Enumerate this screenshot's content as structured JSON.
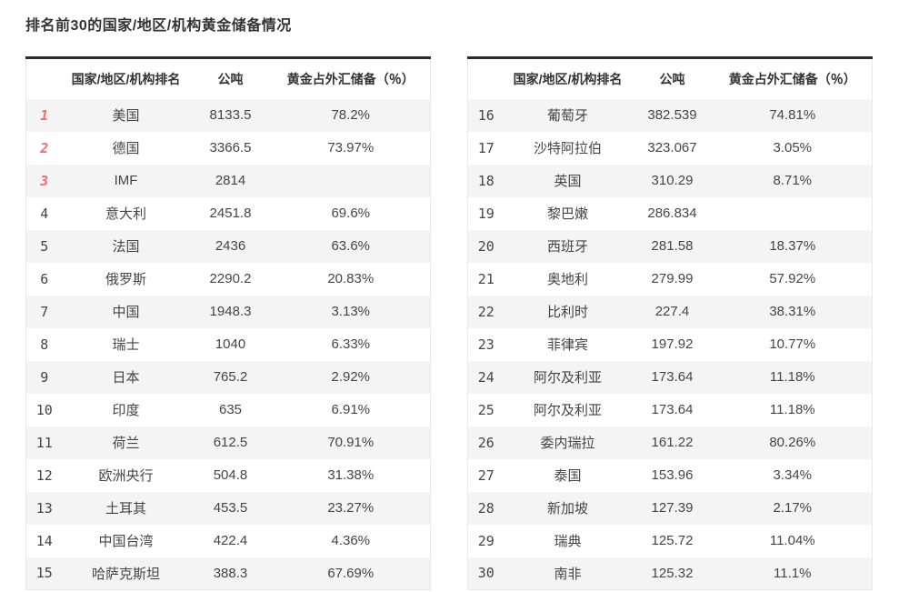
{
  "page_title": "排名前30的国家/地区/机构黄金储备情况",
  "table_header": {
    "rank": "",
    "name": "国家/地区/机构排名",
    "tonnes": "公吨",
    "pct": "黄金占外汇储备（％）"
  },
  "colors": {
    "accent_rank_top3": "#f26d6d",
    "rank_default": "#7a7a7a",
    "row_alt_bg": "#f4f4f4",
    "top_border": "#2b2b2b",
    "text": "#454545"
  },
  "tables": [
    {
      "rows": [
        {
          "rank": "1",
          "name": "美国",
          "tonnes": "8133.5",
          "pct": "78.2%"
        },
        {
          "rank": "2",
          "name": "德国",
          "tonnes": "3366.5",
          "pct": "73.97%"
        },
        {
          "rank": "3",
          "name": "IMF",
          "tonnes": "2814",
          "pct": ""
        },
        {
          "rank": "4",
          "name": "意大利",
          "tonnes": "2451.8",
          "pct": "69.6%"
        },
        {
          "rank": "5",
          "name": "法国",
          "tonnes": "2436",
          "pct": "63.6%"
        },
        {
          "rank": "6",
          "name": "俄罗斯",
          "tonnes": "2290.2",
          "pct": "20.83%"
        },
        {
          "rank": "7",
          "name": "中国",
          "tonnes": "1948.3",
          "pct": "3.13%"
        },
        {
          "rank": "8",
          "name": "瑞士",
          "tonnes": "1040",
          "pct": "6.33%"
        },
        {
          "rank": "9",
          "name": "日本",
          "tonnes": "765.2",
          "pct": "2.92%"
        },
        {
          "rank": "10",
          "name": "印度",
          "tonnes": "635",
          "pct": "6.91%"
        },
        {
          "rank": "11",
          "name": "荷兰",
          "tonnes": "612.5",
          "pct": "70.91%"
        },
        {
          "rank": "12",
          "name": "欧洲央行",
          "tonnes": "504.8",
          "pct": "31.38%"
        },
        {
          "rank": "13",
          "name": "土耳其",
          "tonnes": "453.5",
          "pct": "23.27%"
        },
        {
          "rank": "14",
          "name": "中国台湾",
          "tonnes": "422.4",
          "pct": "4.36%"
        },
        {
          "rank": "15",
          "name": "哈萨克斯坦",
          "tonnes": "388.3",
          "pct": "67.69%"
        }
      ]
    },
    {
      "rows": [
        {
          "rank": "16",
          "name": "葡萄牙",
          "tonnes": "382.539",
          "pct": "74.81%"
        },
        {
          "rank": "17",
          "name": "沙特阿拉伯",
          "tonnes": "323.067",
          "pct": "3.05%"
        },
        {
          "rank": "18",
          "name": "英国",
          "tonnes": "310.29",
          "pct": "8.71%"
        },
        {
          "rank": "19",
          "name": "黎巴嫩",
          "tonnes": "286.834",
          "pct": ""
        },
        {
          "rank": "20",
          "name": "西班牙",
          "tonnes": "281.58",
          "pct": "18.37%"
        },
        {
          "rank": "21",
          "name": "奥地利",
          "tonnes": "279.99",
          "pct": "57.92%"
        },
        {
          "rank": "22",
          "name": "比利时",
          "tonnes": "227.4",
          "pct": "38.31%"
        },
        {
          "rank": "23",
          "name": "菲律宾",
          "tonnes": "197.92",
          "pct": "10.77%"
        },
        {
          "rank": "24",
          "name": "阿尔及利亚",
          "tonnes": "173.64",
          "pct": "11.18%"
        },
        {
          "rank": "25",
          "name": "阿尔及利亚",
          "tonnes": "173.64",
          "pct": "11.18%"
        },
        {
          "rank": "26",
          "name": "委内瑞拉",
          "tonnes": "161.22",
          "pct": "80.26%"
        },
        {
          "rank": "27",
          "name": "泰国",
          "tonnes": "153.96",
          "pct": "3.34%"
        },
        {
          "rank": "28",
          "name": "新加坡",
          "tonnes": "127.39",
          "pct": "2.17%"
        },
        {
          "rank": "29",
          "name": "瑞典",
          "tonnes": "125.72",
          "pct": "11.04%"
        },
        {
          "rank": "30",
          "name": "南非",
          "tonnes": "125.32",
          "pct": "11.1%"
        }
      ]
    }
  ]
}
